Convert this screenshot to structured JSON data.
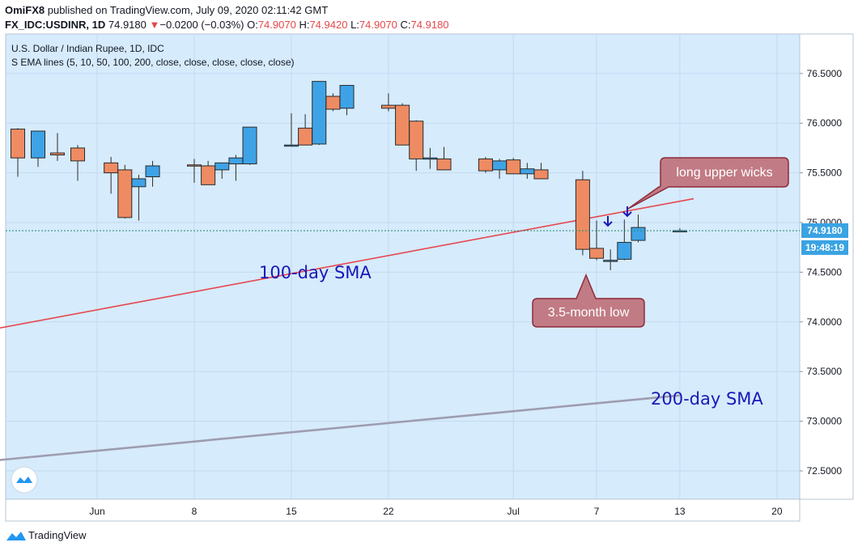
{
  "header": {
    "author": "OmiFX8",
    "published_text": " published on TradingView.com, July 09, 2020 02:11:42 GMT",
    "symbol": "FX_IDC:USDINR, 1D",
    "price": "74.9180",
    "change_arrow": "▼",
    "change": "−0.0200 (−0.03%)",
    "o_label": "O:",
    "o_value": "74.9070",
    "h_label": "H:",
    "h_value": "74.9420",
    "l_label": "L:",
    "l_value": "74.9070",
    "c_label": "C:",
    "c_value": "74.9180"
  },
  "legend": {
    "title": "U.S. Dollar / Indian Rupee, 1D, IDC",
    "indicator": "S EMA lines (5, 10, 50, 100, 200, close, close, close, close, close)"
  },
  "price_axis": {
    "ticks": [
      "76.5000",
      "76.0000",
      "75.5000",
      "75.0000",
      "74.5000",
      "74.0000",
      "73.5000",
      "73.0000",
      "72.5000"
    ],
    "current_price_label": "74.9180",
    "countdown_label": "19:48:19"
  },
  "time_axis": {
    "ticks": [
      "Jun",
      "8",
      "15",
      "22",
      "Jul",
      "7",
      "13",
      "20"
    ]
  },
  "annotations": {
    "sma100_label": "100-day SMA",
    "sma200_label": "200-day SMA",
    "wicks_callout": "long upper wicks",
    "low_callout": "3.5-month low"
  },
  "footer": {
    "brand": "TradingView"
  },
  "colors": {
    "background": "#d6ebfc",
    "up_candle": "#3ea3e6",
    "down_candle": "#ee8b62",
    "candle_outline": "#2b2b2b",
    "sma100": "#e8474e",
    "sma200": "#9e9cb0",
    "callout_fill": "#c17b85",
    "callout_border": "#8e2b3b",
    "label_blue": "#1a18b8",
    "price_label_bg": "#3aa3e3"
  },
  "chart_data": {
    "type": "candlestick",
    "title": "U.S. Dollar / Indian Rupee, 1D, IDC",
    "xlabel": "",
    "ylabel": "",
    "ylim": [
      72.3,
      76.85
    ],
    "x_ticks": [
      "Jun",
      "8",
      "15",
      "22",
      "Jul",
      "7",
      "13",
      "20"
    ],
    "candles": [
      {
        "date": "2020-05-27",
        "o": 75.94,
        "h": 75.95,
        "l": 75.46,
        "c": 75.65
      },
      {
        "date": "2020-05-28",
        "o": 75.65,
        "h": 75.92,
        "l": 75.56,
        "c": 75.92
      },
      {
        "date": "2020-05-29",
        "o": 75.7,
        "h": 75.9,
        "l": 75.62,
        "c": 75.68
      },
      {
        "date": "2020-06-01",
        "o": 75.75,
        "h": 75.78,
        "l": 75.42,
        "c": 75.62
      },
      {
        "date": "2020-06-02",
        "o": 75.6,
        "h": 75.66,
        "l": 75.29,
        "c": 75.5
      },
      {
        "date": "2020-06-03",
        "o": 75.53,
        "h": 75.58,
        "l": 75.04,
        "c": 75.05
      },
      {
        "date": "2020-06-04",
        "o": 75.36,
        "h": 75.48,
        "l": 75.02,
        "c": 75.44
      },
      {
        "date": "2020-06-05",
        "o": 75.46,
        "h": 75.62,
        "l": 75.36,
        "c": 75.57
      },
      {
        "date": "2020-06-08",
        "o": 75.58,
        "h": 75.64,
        "l": 75.4,
        "c": 75.57
      },
      {
        "date": "2020-06-09",
        "o": 75.57,
        "h": 75.62,
        "l": 75.38,
        "c": 75.38
      },
      {
        "date": "2020-06-10",
        "o": 75.53,
        "h": 75.6,
        "l": 75.44,
        "c": 75.6
      },
      {
        "date": "2020-06-11",
        "o": 75.59,
        "h": 75.68,
        "l": 75.42,
        "c": 75.65
      },
      {
        "date": "2020-06-12",
        "o": 75.59,
        "h": 75.96,
        "l": 75.58,
        "c": 75.96
      },
      {
        "date": "2020-06-15",
        "o": 75.78,
        "h": 76.1,
        "l": 75.78,
        "c": 75.78
      },
      {
        "date": "2020-06-16",
        "o": 75.95,
        "h": 76.09,
        "l": 75.78,
        "c": 75.78
      },
      {
        "date": "2020-06-17",
        "o": 75.79,
        "h": 76.42,
        "l": 75.78,
        "c": 76.42
      },
      {
        "date": "2020-06-18",
        "o": 76.27,
        "h": 76.3,
        "l": 76.12,
        "c": 76.14
      },
      {
        "date": "2020-06-19",
        "o": 76.15,
        "h": 76.38,
        "l": 76.08,
        "c": 76.38
      },
      {
        "date": "2020-06-22",
        "o": 76.18,
        "h": 76.3,
        "l": 76.12,
        "c": 76.15
      },
      {
        "date": "2020-06-23",
        "o": 76.18,
        "h": 76.2,
        "l": 75.78,
        "c": 75.78
      },
      {
        "date": "2020-06-24",
        "o": 76.02,
        "h": 76.03,
        "l": 75.52,
        "c": 75.64
      },
      {
        "date": "2020-06-25",
        "o": 75.65,
        "h": 75.75,
        "l": 75.54,
        "c": 75.65
      },
      {
        "date": "2020-06-26",
        "o": 75.64,
        "h": 75.76,
        "l": 75.54,
        "c": 75.53
      },
      {
        "date": "2020-06-29",
        "o": 75.64,
        "h": 75.66,
        "l": 75.5,
        "c": 75.52
      },
      {
        "date": "2020-06-30",
        "o": 75.53,
        "h": 75.64,
        "l": 75.44,
        "c": 75.62
      },
      {
        "date": "2020-07-01",
        "o": 75.63,
        "h": 75.65,
        "l": 75.49,
        "c": 75.49
      },
      {
        "date": "2020-07-02",
        "o": 75.49,
        "h": 75.6,
        "l": 75.44,
        "c": 75.54
      },
      {
        "date": "2020-07-03",
        "o": 75.53,
        "h": 75.6,
        "l": 75.44,
        "c": 75.44
      },
      {
        "date": "2020-07-06",
        "o": 75.43,
        "h": 75.52,
        "l": 74.67,
        "c": 74.73
      },
      {
        "date": "2020-07-07",
        "o": 74.74,
        "h": 75.02,
        "l": 74.62,
        "c": 74.64
      },
      {
        "date": "2020-07-08",
        "o": 74.62,
        "h": 74.73,
        "l": 74.52,
        "c": 74.62
      },
      {
        "date": "2020-07-09",
        "o": 74.63,
        "h": 75.03,
        "l": 74.62,
        "c": 74.8
      },
      {
        "date": "2020-07-10",
        "o": 74.82,
        "h": 75.08,
        "l": 74.8,
        "c": 74.95
      },
      {
        "date": "2020-07-13",
        "o": 74.907,
        "h": 74.942,
        "l": 74.907,
        "c": 74.918
      }
    ],
    "series": [
      {
        "name": "100-day SMA",
        "x": [
          "2020-05-27",
          "2020-07-14"
        ],
        "y": [
          73.9,
          75.24
        ]
      },
      {
        "name": "200-day SMA",
        "x": [
          "2020-05-27",
          "2020-07-13"
        ],
        "y": [
          72.59,
          73.26
        ]
      }
    ],
    "current_price": 74.918,
    "grid": true
  }
}
